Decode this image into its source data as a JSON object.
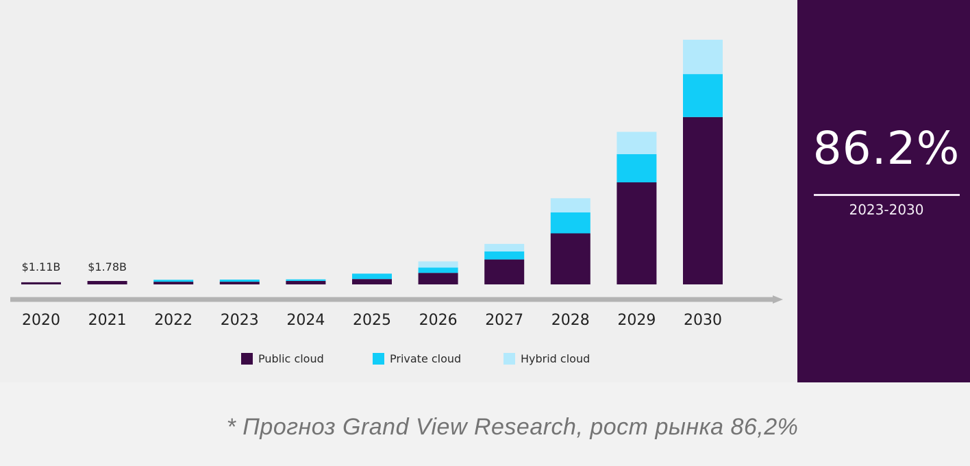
{
  "chart_data": {
    "type": "bar",
    "stacked": true,
    "title": "",
    "xlabel": "",
    "ylabel": "",
    "unit": "$B",
    "categories": [
      "2020",
      "2021",
      "2022",
      "2023",
      "2024",
      "2025",
      "2026",
      "2027",
      "2028",
      "2029",
      "2030"
    ],
    "series": [
      {
        "name": "Public cloud",
        "color": "#3b0a45",
        "values": [
          1.11,
          1.78,
          1.4,
          1.4,
          1.8,
          2.8,
          6.0,
          13.0,
          26.6,
          53.2,
          87.2
        ]
      },
      {
        "name": "Private cloud",
        "color": "#12cdf8",
        "values": [
          0,
          0,
          1.0,
          1.1,
          0.8,
          2.8,
          2.8,
          4.2,
          10.9,
          14.7,
          22.4
        ]
      },
      {
        "name": "Hybrid cloud",
        "color": "#b3e9fc",
        "values": [
          0,
          0,
          0,
          0,
          0,
          0,
          3.2,
          3.9,
          7.4,
          11.6,
          17.9
        ]
      }
    ],
    "data_labels": [
      {
        "category": "2020",
        "text": "$1.11B"
      },
      {
        "category": "2021",
        "text": "$1.78B"
      }
    ],
    "ylim": [
      0,
      130
    ],
    "grid": false,
    "x_axis_arrow": true,
    "legend_position": "bottom-center"
  },
  "stat": {
    "value": "86.2%",
    "period": "2023-2030"
  },
  "footnote": "* Прогноз Grand View Research, рост рынка 86,2%",
  "colors": {
    "panel_background": "#3b0a45",
    "axis": "#b3b3b3",
    "background": "#efefef"
  }
}
